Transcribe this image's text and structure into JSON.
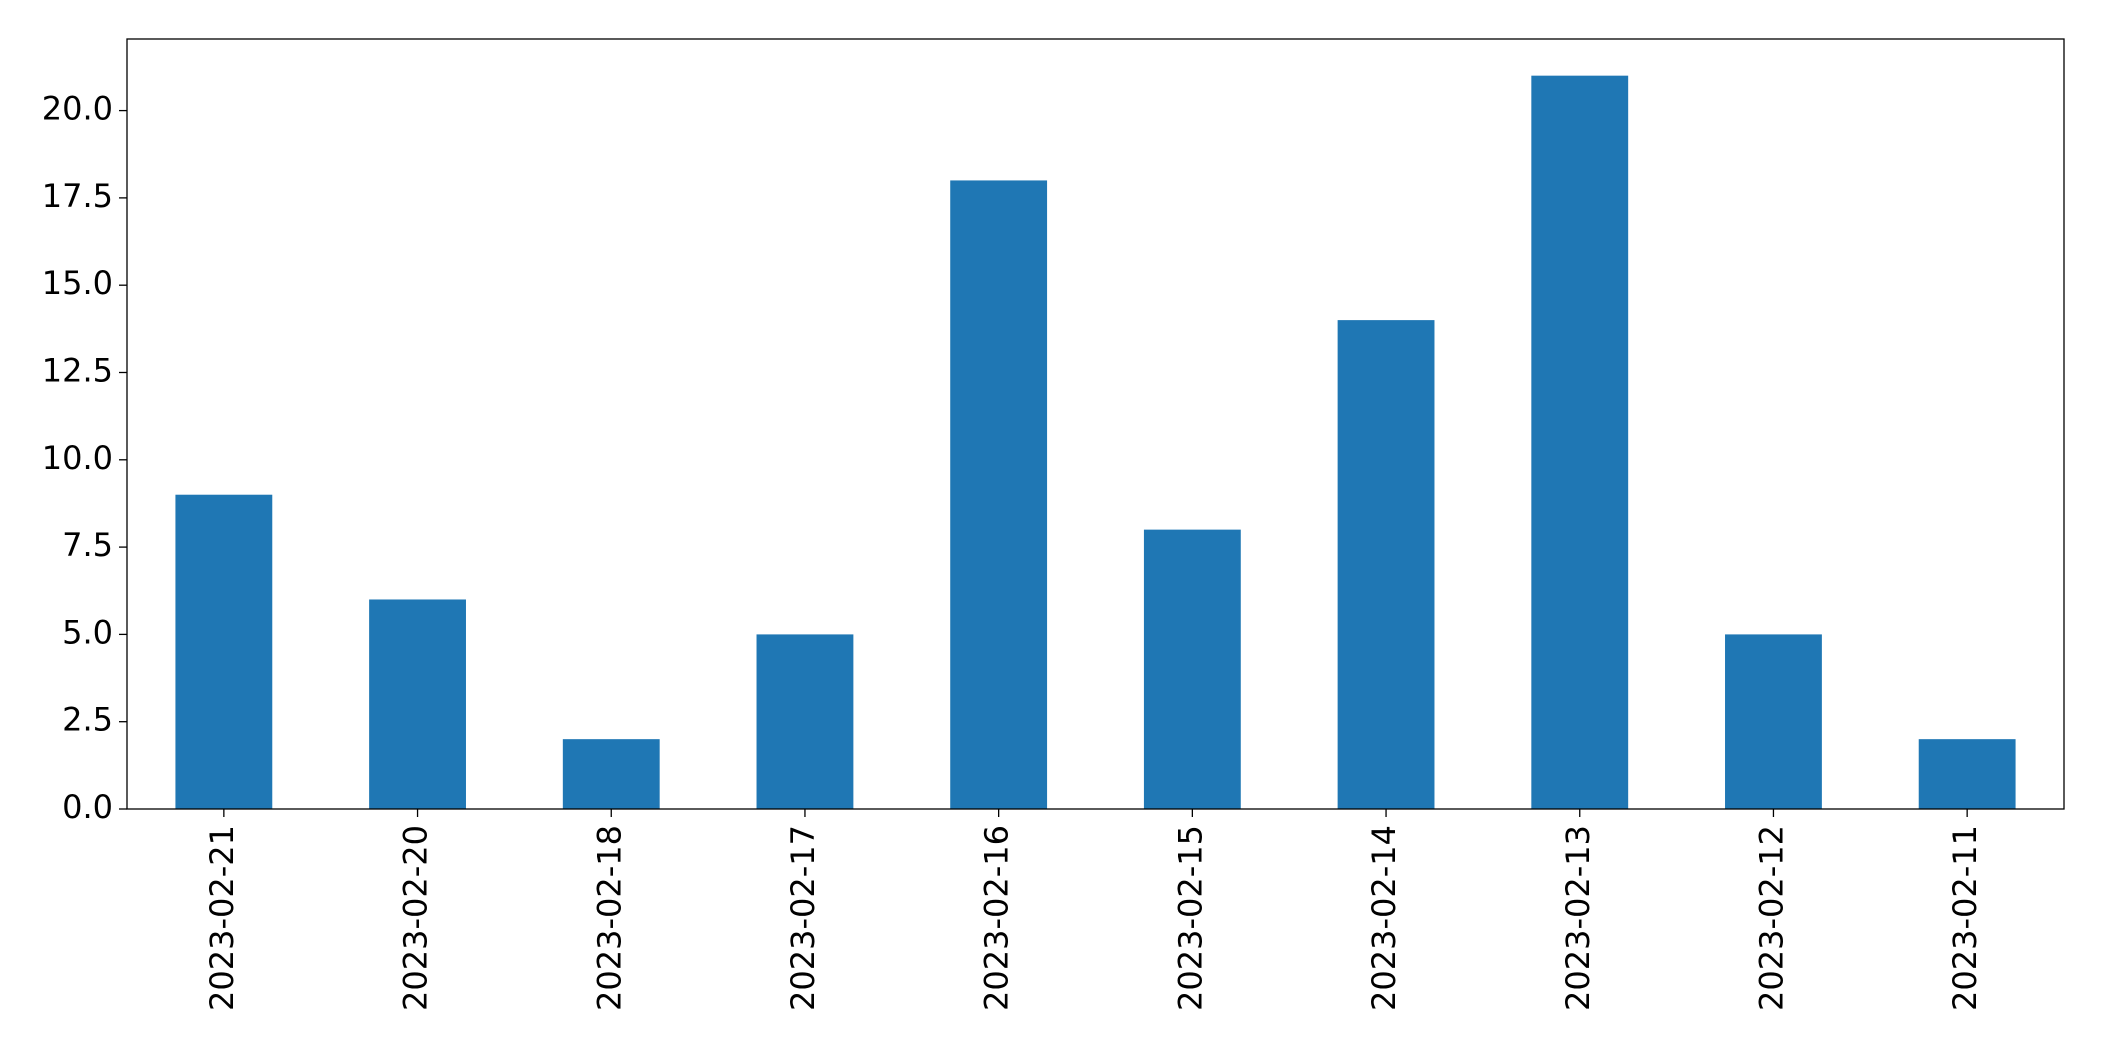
{
  "chart_data": {
    "type": "bar",
    "categories": [
      "2023-02-21",
      "2023-02-20",
      "2023-02-18",
      "2023-02-17",
      "2023-02-16",
      "2023-02-15",
      "2023-02-14",
      "2023-02-13",
      "2023-02-12",
      "2023-02-11"
    ],
    "values": [
      9,
      6,
      2,
      5,
      18,
      8,
      14,
      21,
      5,
      2
    ],
    "color": "#1f77b4",
    "ylim": [
      0,
      22.05
    ],
    "yticks": [
      {
        "value": 0,
        "label": "0.0"
      },
      2.5,
      {
        "value": 5,
        "label": "5.0"
      },
      7.5,
      {
        "value": 10,
        "label": "10.0"
      },
      12.5,
      {
        "value": 15,
        "label": "15.0"
      },
      17.5,
      {
        "value": 20,
        "label": "20.0"
      }
    ],
    "grid": false
  }
}
